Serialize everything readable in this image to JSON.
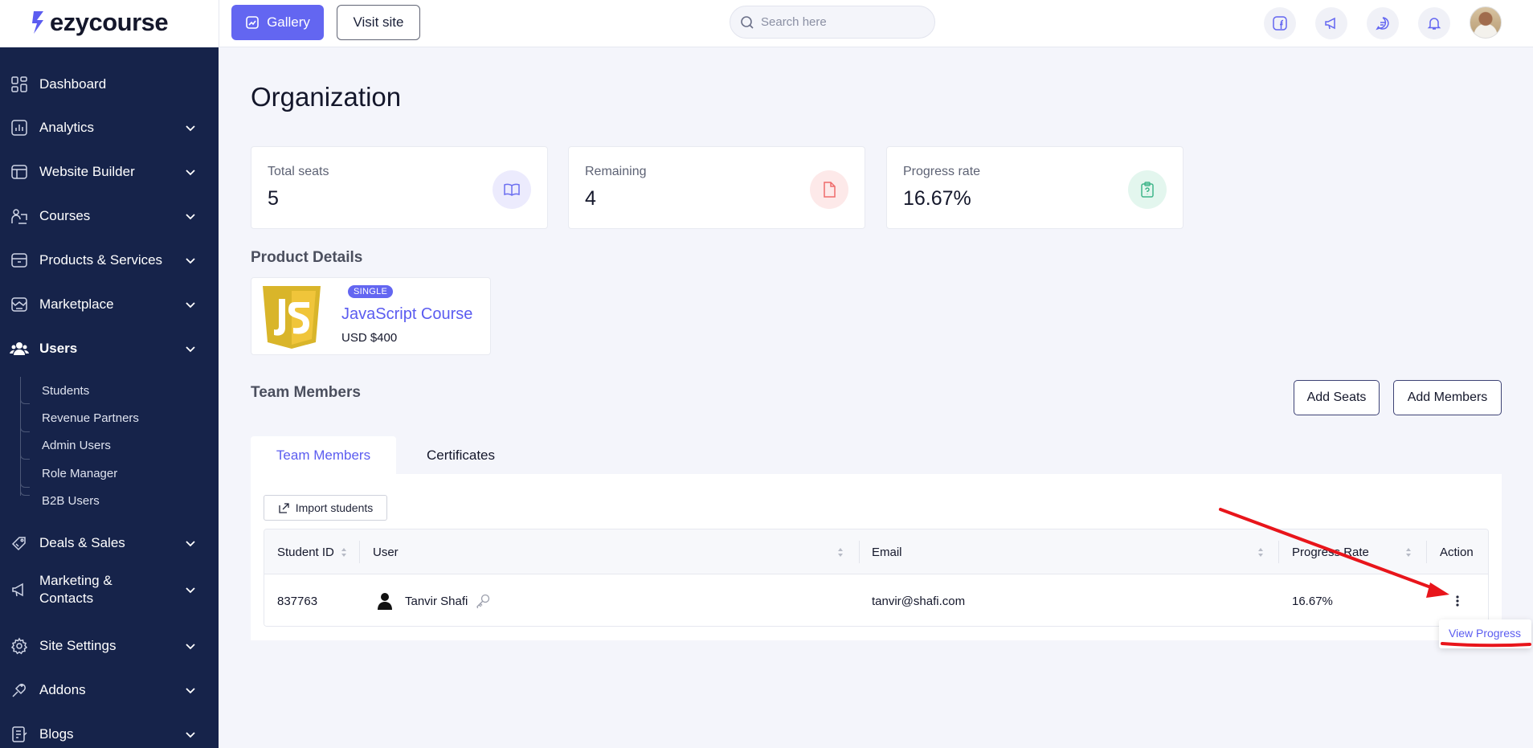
{
  "header": {
    "logo_text": "ezycourse",
    "gallery_label": "Gallery",
    "visit_site_label": "Visit site",
    "search_placeholder": "Search here",
    "icons": [
      "facebook-icon",
      "megaphone-icon",
      "chat-icon",
      "bell-icon"
    ]
  },
  "sidebar": {
    "items": [
      {
        "label": "Dashboard",
        "icon": "dashboard-icon",
        "chevron": false
      },
      {
        "label": "Analytics",
        "icon": "analytics-icon",
        "chevron": true
      },
      {
        "label": "Website Builder",
        "icon": "website-builder-icon",
        "chevron": true
      },
      {
        "label": "Courses",
        "icon": "courses-icon",
        "chevron": true
      },
      {
        "label": "Products & Services",
        "icon": "products-icon",
        "chevron": true
      },
      {
        "label": "Marketplace",
        "icon": "marketplace-icon",
        "chevron": true
      },
      {
        "label": "Users",
        "icon": "users-icon",
        "chevron": true,
        "expanded": true
      },
      {
        "label": "Deals & Sales",
        "icon": "deals-icon",
        "chevron": true
      },
      {
        "label": "Marketing &",
        "label2": "Contacts",
        "icon": "marketing-icon",
        "chevron": true
      },
      {
        "label": "Site Settings",
        "icon": "settings-icon",
        "chevron": true
      },
      {
        "label": "Addons",
        "icon": "addons-icon",
        "chevron": true
      },
      {
        "label": "Blogs",
        "icon": "blogs-icon",
        "chevron": true
      }
    ],
    "users_subitems": [
      "Students",
      "Revenue Partners",
      "Admin Users",
      "Role Manager",
      "B2B Users"
    ]
  },
  "main": {
    "title": "Organization",
    "stats": [
      {
        "label": "Total seats",
        "value": "5",
        "icon": "book-icon",
        "color": "#6366f1"
      },
      {
        "label": "Remaining",
        "value": "4",
        "icon": "document-icon",
        "color": "#ef6b6b"
      },
      {
        "label": "Progress rate",
        "value": "16.67%",
        "icon": "clipboard-icon",
        "color": "#3fb58a"
      }
    ],
    "product_details_title": "Product Details",
    "product": {
      "badge": "SINGLE",
      "name": "JavaScript Course",
      "price": "USD $400"
    },
    "team_members_title": "Team Members",
    "add_seats_label": "Add Seats",
    "add_members_label": "Add Members",
    "tabs": [
      {
        "label": "Team Members",
        "active": true
      },
      {
        "label": "Certificates",
        "active": false
      }
    ],
    "import_label": "Import students",
    "table": {
      "columns": [
        "Student ID",
        "User",
        "Email",
        "Progress Rate",
        "Action"
      ],
      "rows": [
        {
          "student_id": "837763",
          "user": "Tanvir Shafi",
          "email": "tanvir@shafi.com",
          "progress": "16.67%"
        }
      ]
    },
    "dropdown_item": "View Progress"
  },
  "colors": {
    "accent": "#6366f1",
    "sidebar_bg": "#16234a",
    "annotation_red": "#e8151b"
  }
}
